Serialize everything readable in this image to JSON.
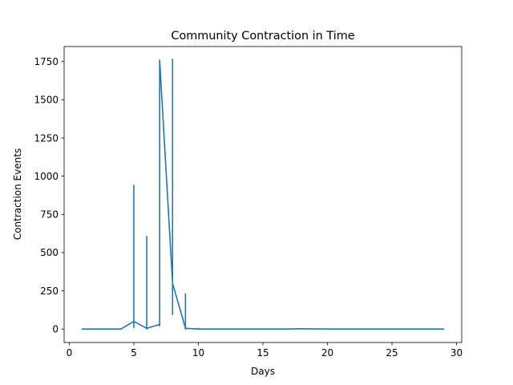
{
  "chart_data": {
    "type": "line",
    "title": "Community Contraction in Time",
    "xlabel": "Days",
    "ylabel": "Contraction Events",
    "xlim": [
      -0.4,
      30.4
    ],
    "ylim": [
      -88,
      1848
    ],
    "xticks": [
      0,
      5,
      10,
      15,
      20,
      25,
      30
    ],
    "yticks": [
      0,
      250,
      500,
      750,
      1000,
      1250,
      1500,
      1750
    ],
    "grid": false,
    "series": [
      {
        "color": "#1f77b4",
        "points": [
          [
            1,
            0
          ],
          [
            2,
            0
          ],
          [
            3,
            0
          ],
          [
            4,
            0
          ],
          [
            5,
            50
          ],
          [
            5,
            10
          ],
          [
            5,
            940
          ],
          [
            5,
            50
          ],
          [
            6,
            5
          ],
          [
            6,
            0
          ],
          [
            6,
            605
          ],
          [
            6,
            5
          ],
          [
            7,
            30
          ],
          [
            7,
            20
          ],
          [
            7,
            1760
          ],
          [
            8,
            300
          ],
          [
            8,
            95
          ],
          [
            8,
            1765
          ],
          [
            8,
            300
          ],
          [
            9,
            5
          ],
          [
            9,
            0
          ],
          [
            9,
            230
          ],
          [
            9,
            5
          ],
          [
            10,
            0
          ],
          [
            10,
            5
          ],
          [
            10,
            0
          ],
          [
            11,
            0
          ],
          [
            12,
            0
          ],
          [
            13,
            0
          ],
          [
            14,
            0
          ],
          [
            15,
            0
          ],
          [
            16,
            0
          ],
          [
            17,
            0
          ],
          [
            18,
            2
          ],
          [
            19,
            1
          ],
          [
            20,
            0
          ],
          [
            21,
            0
          ],
          [
            22,
            0
          ],
          [
            23,
            0
          ],
          [
            24,
            0
          ],
          [
            25,
            0
          ],
          [
            26,
            0
          ],
          [
            27,
            0
          ],
          [
            28,
            0
          ],
          [
            29,
            0
          ]
        ]
      }
    ]
  }
}
